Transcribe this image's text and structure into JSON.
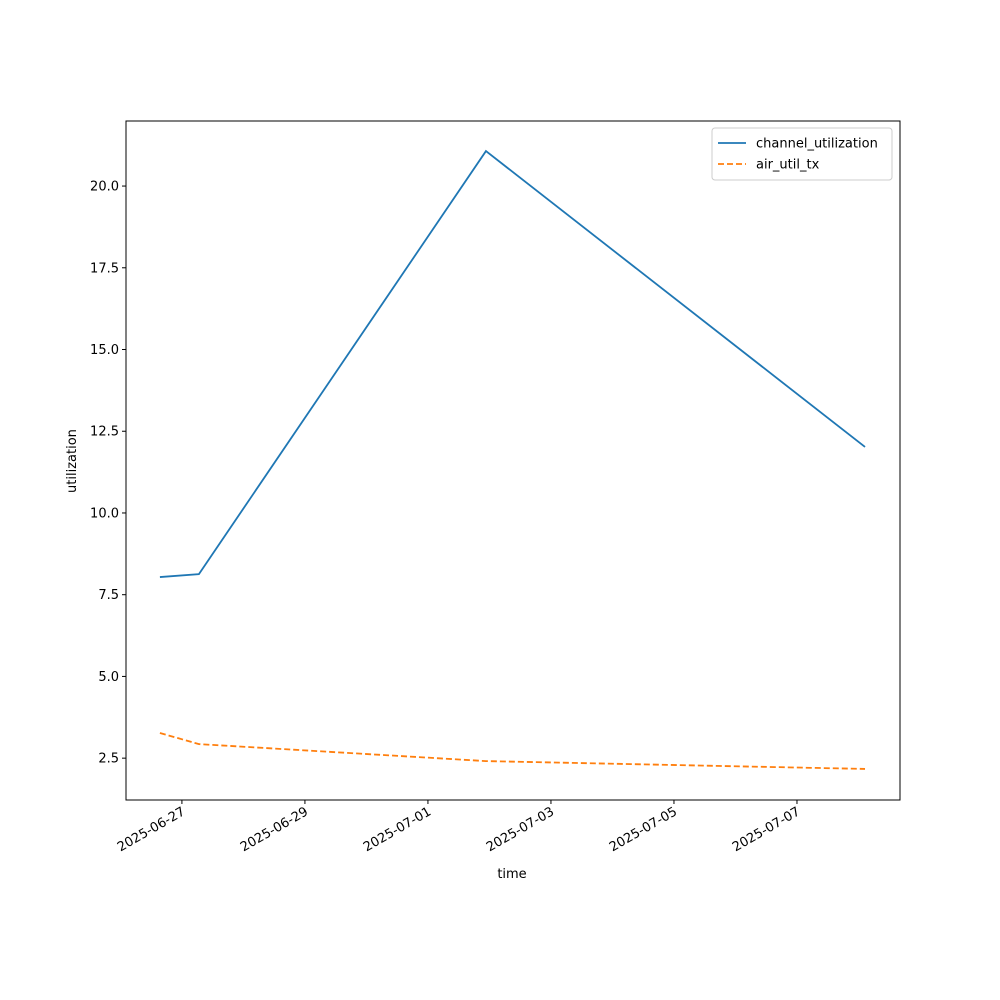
{
  "chart_data": {
    "type": "line",
    "xlabel": "time",
    "ylabel": "utilization",
    "x": [
      "2025-06-26T15:25",
      "2025-06-27T06:38",
      "2025-07-01T22:38",
      "2025-07-08T02:33"
    ],
    "series": [
      {
        "name": "channel_utilization",
        "color": "#1f77b4",
        "dash": "solid",
        "values": [
          8.04,
          8.13,
          21.07,
          12.02
        ]
      },
      {
        "name": "air_util_tx",
        "color": "#ff7f0e",
        "dash": "dashed",
        "values": [
          3.27,
          2.93,
          2.41,
          2.17
        ]
      }
    ],
    "xlim": [
      "2025-06-26T02:11",
      "2025-07-08T16:12"
    ],
    "xticks": [
      "2025-06-27",
      "2025-06-29",
      "2025-07-01",
      "2025-07-03",
      "2025-07-05",
      "2025-07-07"
    ],
    "ylim": [
      1.22,
      21.99
    ],
    "yticks": [
      {
        "value": 2.5,
        "label": "2.5"
      },
      {
        "value": 5,
        "label": "5.0"
      },
      {
        "value": 7.5,
        "label": "7.5"
      },
      {
        "value": 10,
        "label": "10.0"
      },
      {
        "value": 12.5,
        "label": "12.5"
      },
      {
        "value": 15,
        "label": "15.0"
      },
      {
        "value": 17.5,
        "label": "17.5"
      },
      {
        "value": 20,
        "label": "20.0"
      }
    ],
    "grid": false,
    "legend": "upper right"
  }
}
